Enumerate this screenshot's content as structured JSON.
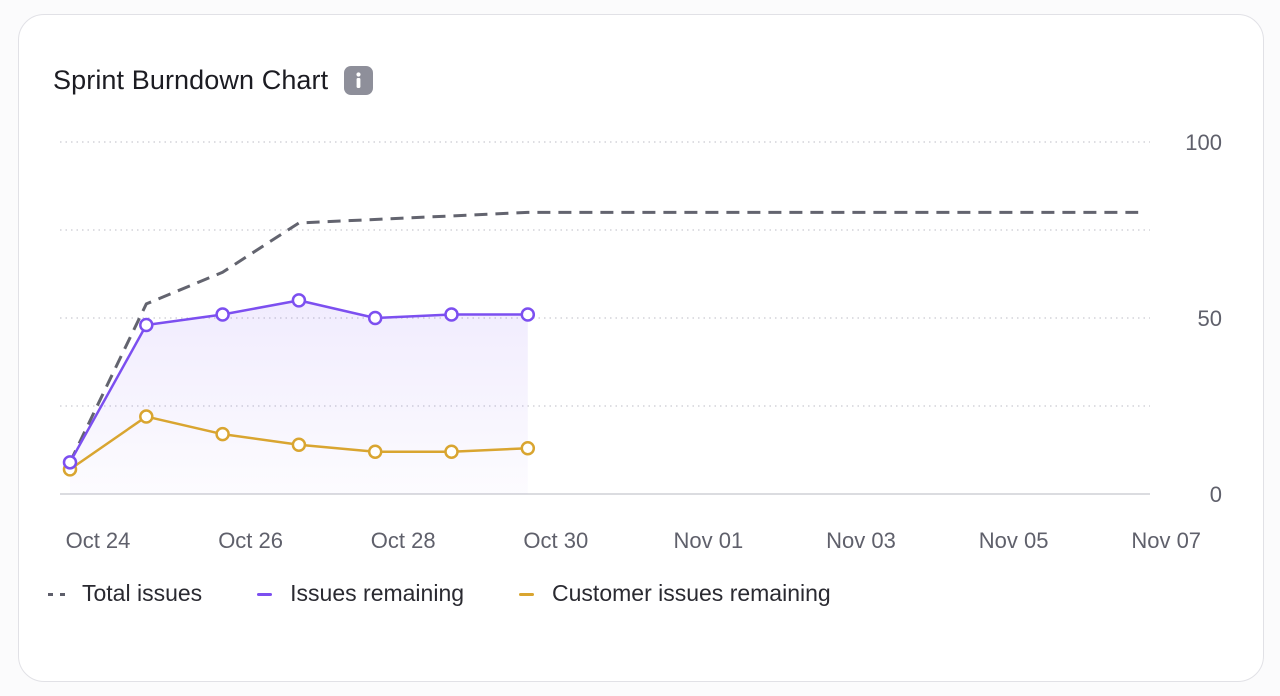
{
  "card": {
    "title": "Sprint Burndown Chart",
    "info_icon": "info-icon"
  },
  "chart_data": {
    "type": "line",
    "title": "Sprint Burndown Chart",
    "xlabel": "",
    "ylabel": "",
    "x_dates": [
      "Oct 24",
      "Oct 25",
      "Oct 26",
      "Oct 27",
      "Oct 28",
      "Oct 29",
      "Oct 30",
      "Oct 31",
      "Nov 01",
      "Nov 02",
      "Nov 03",
      "Nov 04",
      "Nov 05",
      "Nov 06",
      "Nov 07"
    ],
    "x_tick_labels": [
      "Oct 24",
      "Oct 26",
      "Oct 28",
      "Oct 30",
      "Nov 01",
      "Nov 03",
      "Nov 05",
      "Nov 07"
    ],
    "y_tick_labels": [
      "100",
      "50",
      "0"
    ],
    "y_ticks": [
      100,
      50,
      0
    ],
    "y_gridlines": [
      100,
      75,
      50,
      25,
      0
    ],
    "ylim": [
      0,
      100
    ],
    "grid": true,
    "legend_position": "bottom-left",
    "series": [
      {
        "name": "Total issues",
        "style": "dashed",
        "color": "#63646f",
        "markers": false,
        "x_index": [
          0,
          1,
          2,
          3,
          6,
          14
        ],
        "values": [
          9,
          54,
          63,
          77,
          80,
          80
        ]
      },
      {
        "name": "Issues remaining",
        "style": "solid",
        "color": "#7c4ff0",
        "markers": true,
        "area_fill": true,
        "x_index": [
          0,
          1,
          2,
          3,
          4,
          5,
          6
        ],
        "values": [
          9,
          48,
          51,
          55,
          50,
          51,
          51
        ]
      },
      {
        "name": "Customer issues remaining",
        "style": "solid",
        "color": "#d9a530",
        "markers": true,
        "x_index": [
          0,
          1,
          2,
          3,
          4,
          5,
          6
        ],
        "values": [
          7,
          22,
          17,
          14,
          12,
          12,
          13
        ]
      }
    ]
  }
}
